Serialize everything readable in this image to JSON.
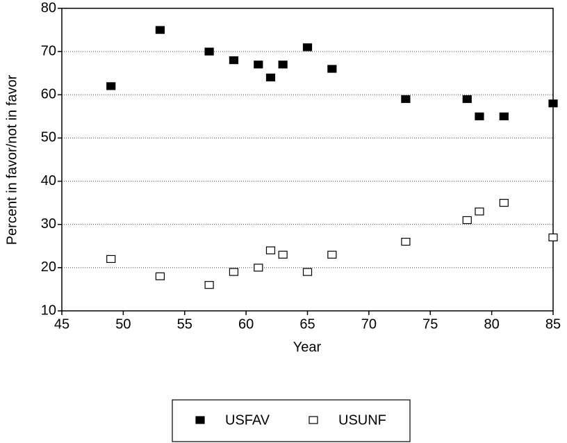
{
  "chart_data": {
    "type": "scatter",
    "xlabel": "Year",
    "ylabel": "Percent in favor/not in favor",
    "x": [
      49,
      53,
      57,
      59,
      61,
      62,
      63,
      65,
      67,
      73,
      78,
      79,
      81,
      85
    ],
    "series": [
      {
        "name": "USFAV",
        "color": "#000000",
        "values": [
          62,
          75,
          70,
          68,
          67,
          64,
          67,
          71,
          66,
          59,
          59,
          55,
          55,
          58
        ]
      },
      {
        "name": "USUNF",
        "color": "#ffffff",
        "values": [
          22,
          18,
          16,
          19,
          20,
          24,
          23,
          19,
          23,
          26,
          31,
          33,
          35,
          27
        ]
      }
    ],
    "xlim": [
      45,
      85
    ],
    "xticks": [
      45,
      50,
      55,
      60,
      65,
      70,
      75,
      80,
      85
    ],
    "ylim": [
      10,
      80
    ],
    "yticks": [
      10,
      20,
      30,
      40,
      50,
      60,
      70,
      80
    ],
    "grid": true,
    "legend": "bottom"
  }
}
